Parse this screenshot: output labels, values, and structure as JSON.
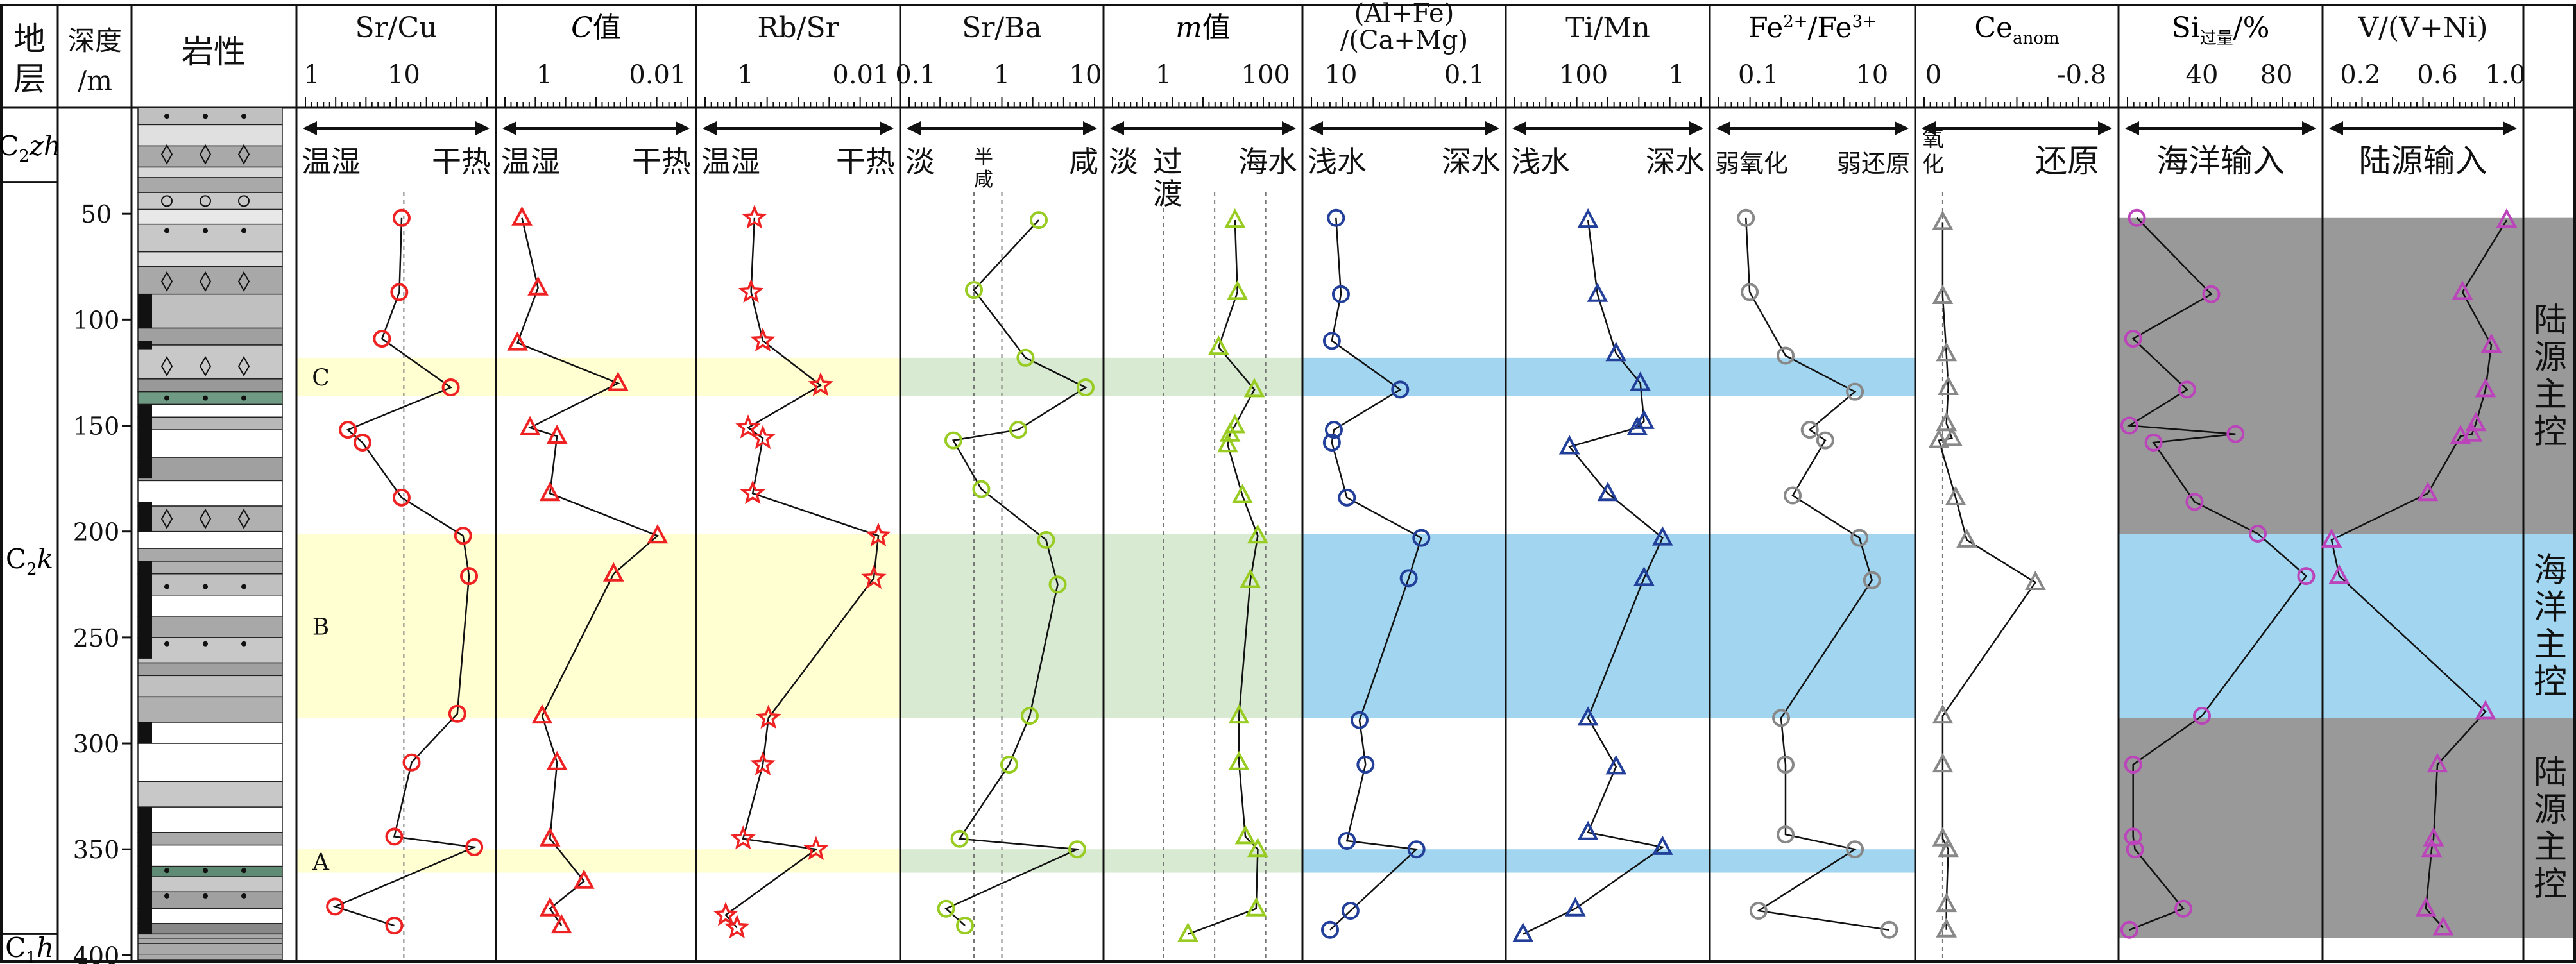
{
  "header": {
    "stratum": "地层",
    "depth": "深度",
    "depth_unit": "/m",
    "lithology": "岩性"
  },
  "strata": [
    {
      "label": "C2zh",
      "base": "C",
      "sub": "2",
      "rest": "zh",
      "top": 0,
      "bottom": 35
    },
    {
      "label": "C2k",
      "base": "C",
      "sub": "2",
      "rest": "k",
      "top": 35,
      "bottom": 390
    },
    {
      "label": "C1h",
      "base": "C",
      "sub": "1",
      "rest": "h",
      "top": 390,
      "bottom": 402
    }
  ],
  "depth_axis": {
    "ticks": [
      50,
      100,
      150,
      200,
      250,
      300,
      350,
      400
    ],
    "min": 0,
    "max": 402
  },
  "highlight_bands": [
    {
      "label": "C",
      "top": 118,
      "bottom": 136
    },
    {
      "label": "B",
      "top": 201,
      "bottom": 288
    },
    {
      "label": "A",
      "top": 350,
      "bottom": 361
    }
  ],
  "side_labels": [
    "陆源主控",
    "海洋主控",
    "陆源主控"
  ],
  "colors": {
    "red": "#ee2222",
    "green": "#99cc22",
    "blue": "#223f9a",
    "gray": "#888888",
    "magenta": "#bb44bb",
    "yellow_band": "#ffffd2",
    "green_band": "#d8ebd2",
    "blue_band": "#a2d6f0",
    "gray_band": "#999999"
  },
  "chart_data": [
    {
      "type": "line",
      "id": "sr_cu",
      "title": "Sr/Cu",
      "scale": "log",
      "xlim": [
        1,
        70
      ],
      "ticks": [
        "1",
        "10"
      ],
      "direction": [
        "温湿",
        "干热"
      ],
      "marker": "circle",
      "color": "red",
      "x": [
        9.5,
        9,
        6,
        30,
        2.7,
        3.8,
        9.5,
        40,
        46,
        35,
        12,
        8,
        52,
        2,
        8
      ],
      "y": [
        52,
        87,
        109,
        132,
        152,
        158,
        184,
        202,
        221,
        286,
        309,
        344,
        349,
        377,
        386
      ]
    },
    {
      "type": "line",
      "id": "c_value",
      "title": "C值",
      "title_italic": "C",
      "title_rest": "值",
      "scale": "log-rev",
      "xlim": [
        5,
        0.003
      ],
      "ticks": [
        "1",
        "0.01"
      ],
      "direction": [
        "温湿",
        "干热"
      ],
      "marker": "triangle",
      "color": "red",
      "x": [
        2.5,
        1.3,
        3,
        0.05,
        1.8,
        0.6,
        0.8,
        0.01,
        0.06,
        1.1,
        0.6,
        0.8,
        0.2,
        0.8,
        0.5
      ],
      "y": [
        52,
        85,
        111,
        130,
        151,
        155,
        182,
        202,
        220,
        287,
        309,
        345,
        365,
        378,
        386
      ]
    },
    {
      "type": "line",
      "id": "rb_sr",
      "title": "Rb/Sr",
      "scale": "log-rev",
      "xlim": [
        5,
        0.003
      ],
      "ticks": [
        "1",
        "0.01"
      ],
      "direction": [
        "温湿",
        "干热"
      ],
      "marker": "star",
      "color": "red",
      "x": [
        0.7,
        0.8,
        0.5,
        0.05,
        0.9,
        0.5,
        0.75,
        0.005,
        0.006,
        0.4,
        0.5,
        1.1,
        0.06,
        2.2,
        1.4
      ],
      "y": [
        52,
        87,
        110,
        131,
        151,
        156,
        182,
        202,
        222,
        288,
        310,
        345,
        350,
        381,
        387
      ]
    },
    {
      "type": "line",
      "id": "sr_ba",
      "title": "Sr/Ba",
      "scale": "log",
      "xlim": [
        0.1,
        10
      ],
      "ticks": [
        "0.1",
        "1",
        "10"
      ],
      "direction": [
        "淡",
        "半咸",
        "咸"
      ],
      "marker": "circle",
      "color": "green",
      "x": [
        2.5,
        0.5,
        1.8,
        8,
        1.5,
        0.3,
        0.6,
        3,
        4,
        2,
        1.2,
        0.35,
        6.5,
        0.25,
        0.4
      ],
      "y": [
        53,
        86,
        118,
        132,
        152,
        157,
        180,
        204,
        225,
        287,
        310,
        345,
        350,
        378,
        386
      ]
    },
    {
      "type": "line",
      "id": "m_value",
      "title": "m值",
      "title_italic": "m",
      "title_rest": "值",
      "scale": "log",
      "xlim": [
        0.1,
        350
      ],
      "ticks": [
        "1",
        "100"
      ],
      "direction": [
        "淡",
        "过渡",
        "海水"
      ],
      "marker": "triangle",
      "color": "green",
      "x": [
        25,
        28,
        12,
        60,
        25,
        20,
        18,
        35,
        70,
        50,
        30,
        30,
        40,
        70,
        65,
        3
      ],
      "y": [
        53,
        87,
        113,
        133,
        150,
        154,
        159,
        183,
        202,
        223,
        287,
        309,
        344,
        350,
        378,
        390
      ]
    },
    {
      "type": "line",
      "id": "al_fe",
      "title": "(Al+Fe)/(Ca+Mg)",
      "scale": "log-rev",
      "xlim": [
        30,
        0.03
      ],
      "ticks": [
        "10",
        "0.1"
      ],
      "direction": [
        "浅水",
        "深水"
      ],
      "marker": "circle",
      "color": "blue",
      "x": [
        12,
        10,
        14,
        1.1,
        13,
        14,
        8,
        0.5,
        0.8,
        5,
        4,
        8,
        0.6,
        7,
        15
      ],
      "y": [
        52,
        88,
        110,
        133,
        152,
        158,
        184,
        203,
        222,
        289,
        310,
        346,
        350,
        379,
        388
      ]
    },
    {
      "type": "line",
      "id": "ti_mn",
      "title": "Ti/Mn",
      "scale": "log-rev",
      "xlim": [
        3000,
        0.3
      ],
      "ticks": [
        "100",
        "1"
      ],
      "direction": [
        "浅水",
        "深水"
      ],
      "marker": "triangle",
      "color": "blue",
      "x": [
        80,
        50,
        20,
        6,
        5,
        7,
        200,
        30,
        2,
        5,
        80,
        20,
        80,
        2,
        150,
        2000
      ],
      "y": [
        53,
        88,
        116,
        130,
        148,
        151,
        160,
        182,
        203,
        222,
        288,
        311,
        342,
        349,
        378,
        390
      ]
    },
    {
      "type": "line",
      "id": "fe2_fe3",
      "title": "Fe2+/Fe3+",
      "scale": "log",
      "xlim": [
        0.02,
        40
      ],
      "ticks": [
        "0.1",
        "10"
      ],
      "direction": [
        "弱氧化",
        "弱还原"
      ],
      "marker": "circle",
      "color": "gray",
      "x": [
        0.06,
        0.07,
        0.3,
        5,
        0.8,
        1.5,
        0.4,
        6,
        10,
        0.25,
        0.3,
        0.3,
        5,
        0.1,
        20
      ],
      "y": [
        52,
        87,
        117,
        134,
        152,
        157,
        183,
        203,
        223,
        288,
        310,
        343,
        350,
        379,
        388
      ]
    },
    {
      "type": "line",
      "id": "ce_anom",
      "title": "Ce_anom",
      "title_base": "Ce",
      "title_sub": "anom",
      "scale": "linear-rev",
      "xlim": [
        0.05,
        -0.95
      ],
      "ticks": [
        "0",
        "-0.8"
      ],
      "direction": [
        "氧化",
        "还原"
      ],
      "marker": "triangle",
      "color": "gray",
      "x": [
        -0.05,
        -0.05,
        -0.07,
        -0.08,
        -0.07,
        -0.1,
        -0.03,
        -0.12,
        -0.18,
        -0.55,
        -0.05,
        -0.05,
        -0.05,
        -0.08,
        -0.07,
        -0.07
      ],
      "y": [
        54,
        89,
        116,
        132,
        149,
        156,
        157,
        184,
        204,
        224,
        287,
        310,
        345,
        350,
        376,
        388
      ]
    },
    {
      "type": "line",
      "id": "si_excess",
      "title": "Si过量/%",
      "title_base": "Si",
      "title_sub": "过量",
      "title_rest": "/%",
      "scale": "linear",
      "xlim": [
        0,
        100
      ],
      "ticks": [
        "40",
        "80"
      ],
      "direction": [
        "海洋输入"
      ],
      "marker": "circle",
      "color": "magenta",
      "x": [
        5,
        45,
        3,
        32,
        1,
        14,
        58,
        36,
        70,
        96,
        40,
        3,
        3,
        4,
        30,
        1
      ],
      "y": [
        52,
        88,
        109,
        133,
        150,
        158,
        154,
        186,
        201,
        221,
        287,
        310,
        344,
        350,
        378,
        388
      ]
    },
    {
      "type": "line",
      "id": "v_ratio",
      "title": "V/(V+Ni)",
      "scale": "linear",
      "xlim": [
        0.05,
        1.0
      ],
      "ticks": [
        "0.2",
        "0.6",
        "1.0"
      ],
      "direction": [
        "陆源输入"
      ],
      "marker": "triangle",
      "color": "magenta",
      "x": [
        0.96,
        0.73,
        0.88,
        0.85,
        0.8,
        0.72,
        0.78,
        0.55,
        0.05,
        0.09,
        0.85,
        0.6,
        0.58,
        0.57,
        0.54,
        0.63
      ],
      "y": [
        53,
        87,
        112,
        133,
        149,
        155,
        154,
        182,
        204,
        221,
        285,
        310,
        345,
        350,
        378,
        387
      ]
    }
  ]
}
